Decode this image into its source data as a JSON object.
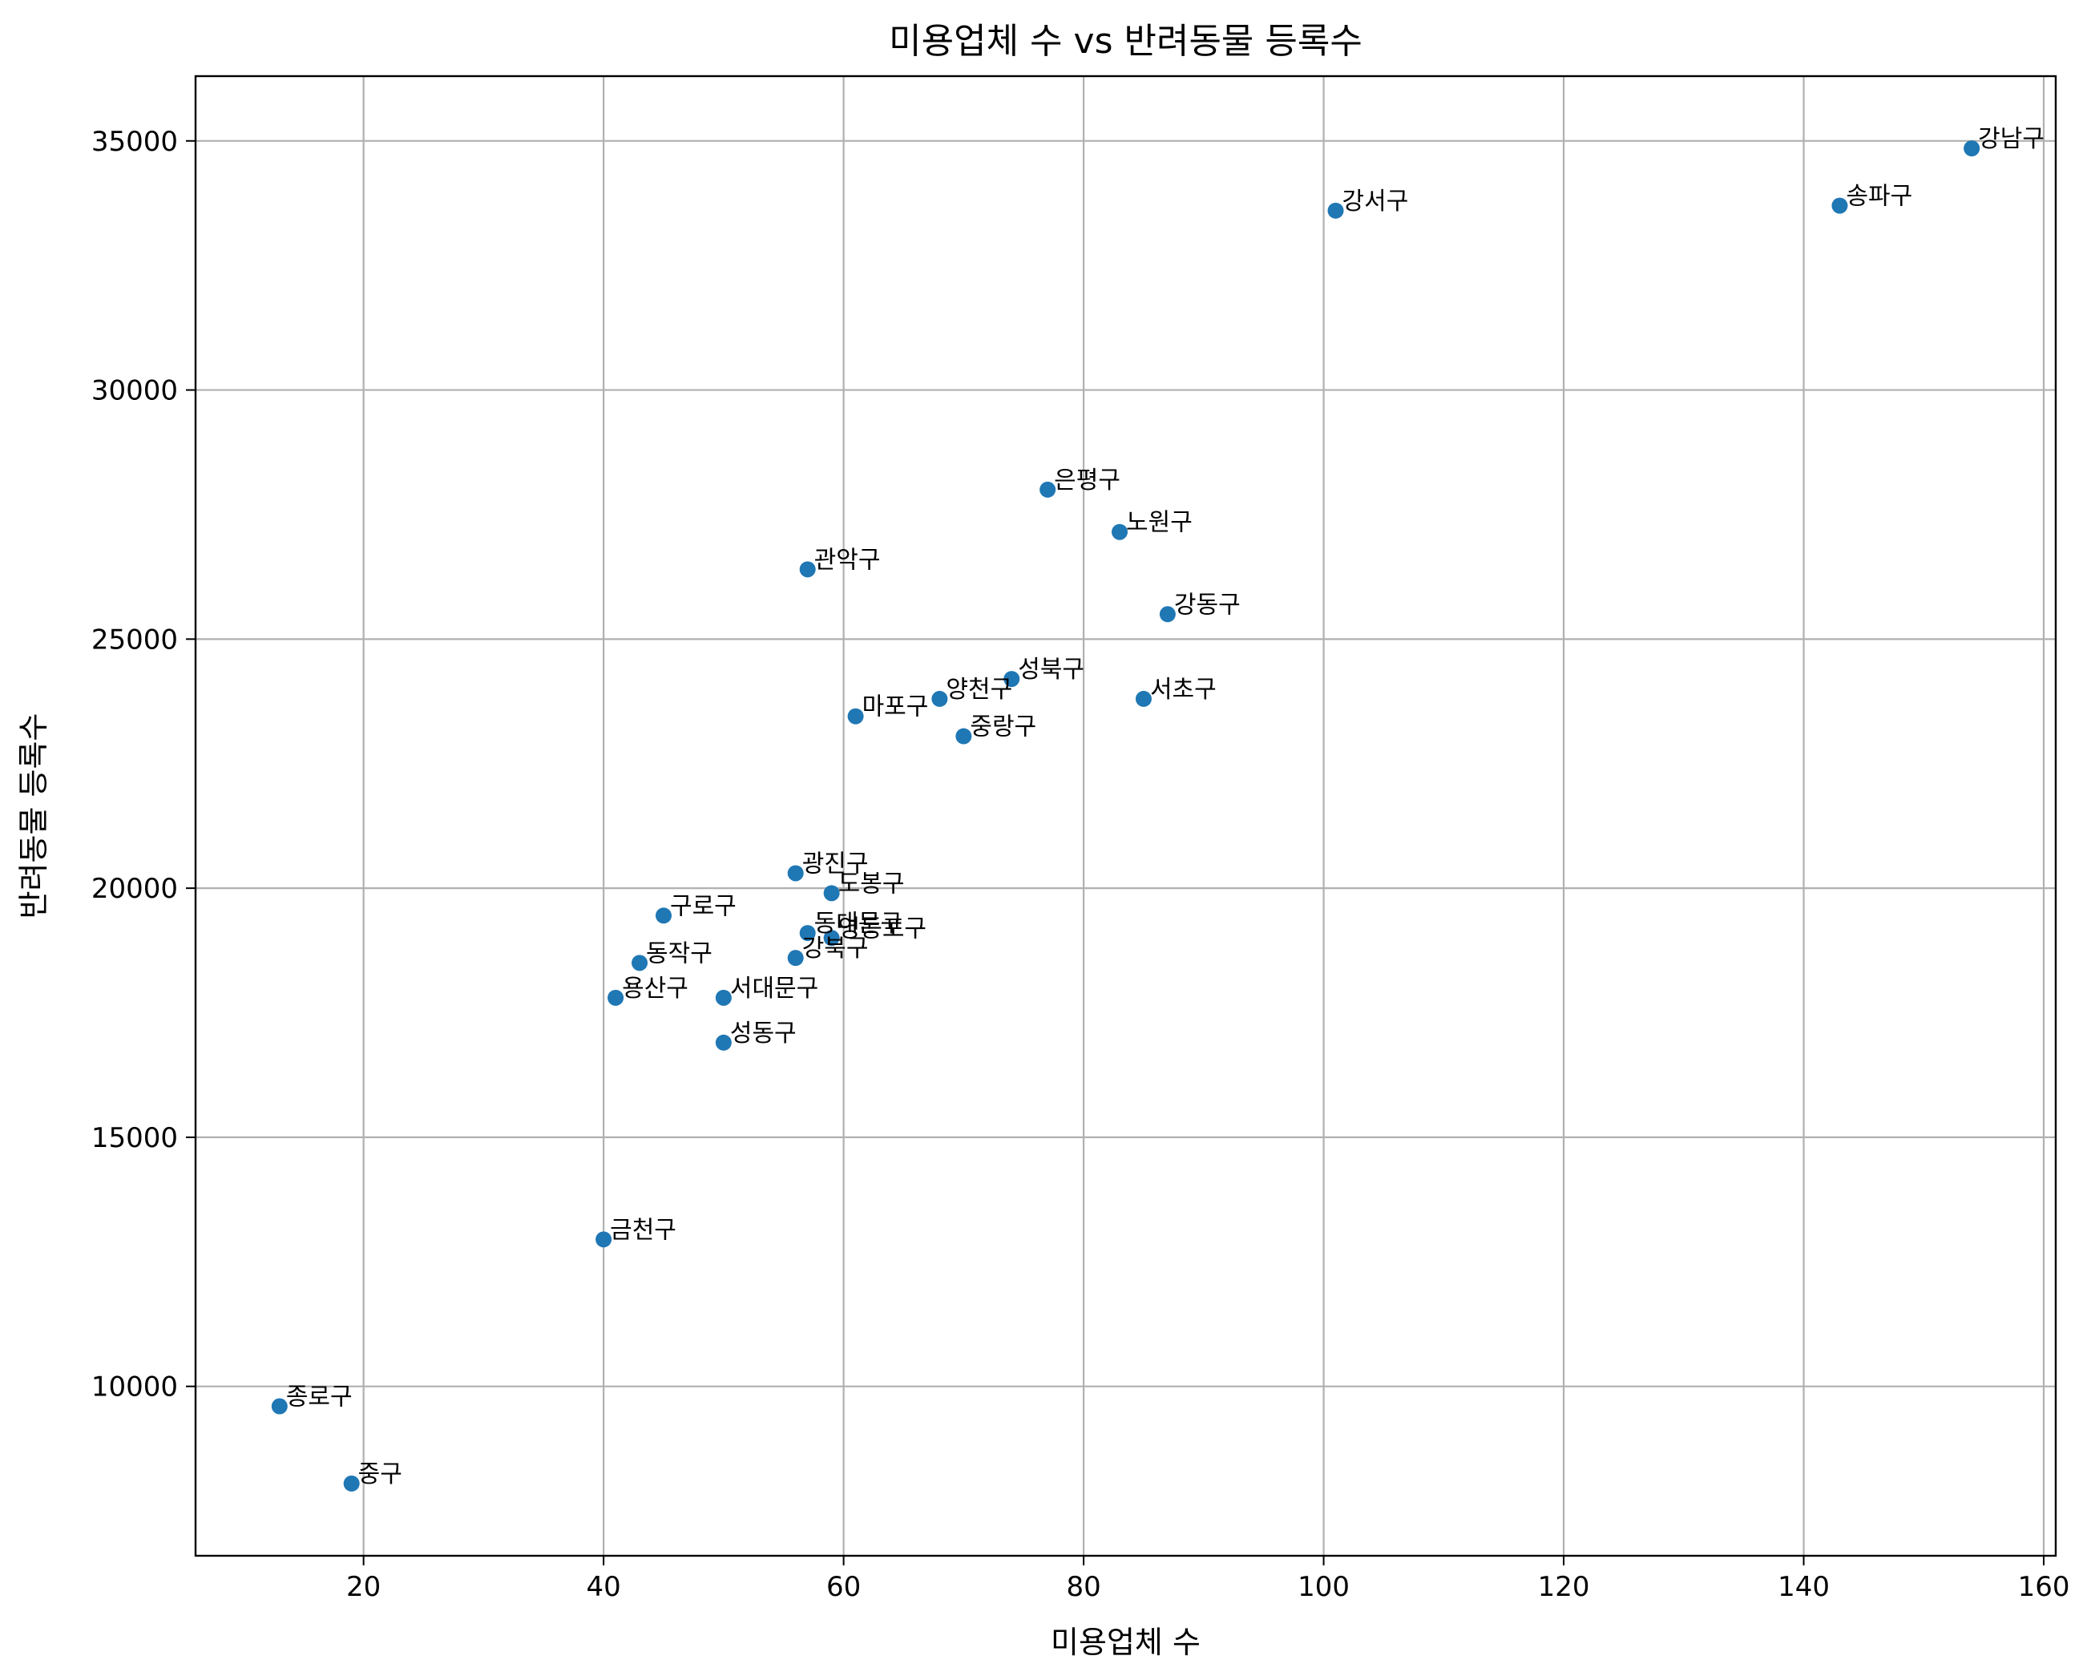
{
  "chart_data": {
    "type": "scatter",
    "title": "미용업체 수 vs 반려동물 등록수",
    "xlabel": "미용업체 수",
    "ylabel": "반려동물 등록수",
    "xlim": [
      6,
      161
    ],
    "ylim": [
      6600,
      36300
    ],
    "xticks": [
      20,
      40,
      60,
      80,
      100,
      120,
      140,
      160
    ],
    "yticks": [
      10000,
      15000,
      20000,
      25000,
      30000,
      35000
    ],
    "grid": true,
    "point_color": "#1f77b4",
    "points": [
      {
        "label": "강남구",
        "x": 154,
        "y": 34850
      },
      {
        "label": "송파구",
        "x": 143,
        "y": 33700
      },
      {
        "label": "강서구",
        "x": 101,
        "y": 33600
      },
      {
        "label": "은평구",
        "x": 77,
        "y": 28000
      },
      {
        "label": "노원구",
        "x": 83,
        "y": 27150
      },
      {
        "label": "관악구",
        "x": 57,
        "y": 26400
      },
      {
        "label": "강동구",
        "x": 87,
        "y": 25500
      },
      {
        "label": "성북구",
        "x": 74,
        "y": 24200
      },
      {
        "label": "양천구",
        "x": 68,
        "y": 23800
      },
      {
        "label": "서초구",
        "x": 85,
        "y": 23800
      },
      {
        "label": "마포구",
        "x": 61,
        "y": 23450
      },
      {
        "label": "중랑구",
        "x": 70,
        "y": 23050
      },
      {
        "label": "광진구",
        "x": 56,
        "y": 20300
      },
      {
        "label": "도봉구",
        "x": 59,
        "y": 19900
      },
      {
        "label": "구로구",
        "x": 45,
        "y": 19450
      },
      {
        "label": "동대문구",
        "x": 57,
        "y": 19100
      },
      {
        "label": "영등포구",
        "x": 59,
        "y": 19000
      },
      {
        "label": "강북구",
        "x": 56,
        "y": 18600
      },
      {
        "label": "동작구",
        "x": 43,
        "y": 18500
      },
      {
        "label": "용산구",
        "x": 41,
        "y": 17800
      },
      {
        "label": "서대문구",
        "x": 50,
        "y": 17800
      },
      {
        "label": "성동구",
        "x": 50,
        "y": 16900
      },
      {
        "label": "금천구",
        "x": 40,
        "y": 12950
      },
      {
        "label": "종로구",
        "x": 13,
        "y": 9600
      },
      {
        "label": "중구",
        "x": 19,
        "y": 8050
      }
    ]
  }
}
